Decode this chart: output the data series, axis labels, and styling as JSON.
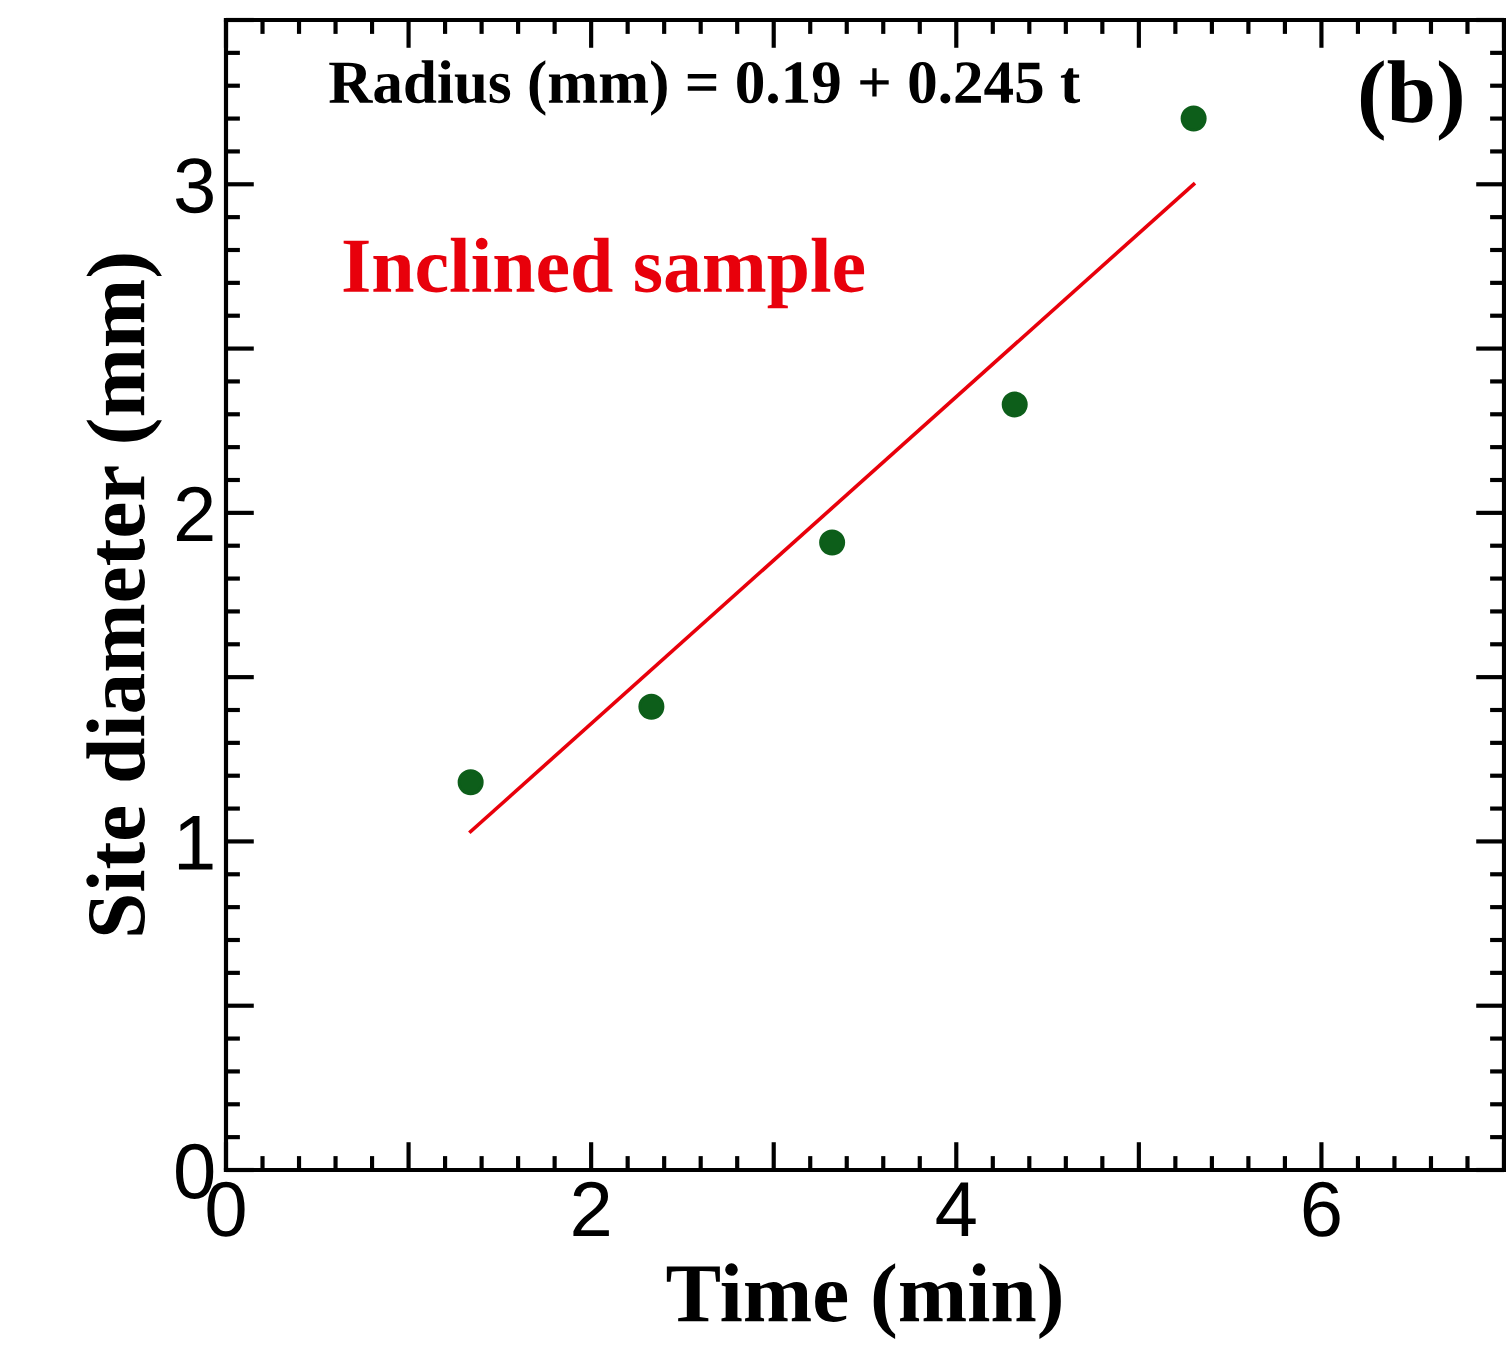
{
  "chart_data": {
    "type": "scatter",
    "xlabel": "Time (min)",
    "ylabel": "Site diameter (mm)",
    "annotations": [
      "Radius (mm) = 0.19 + 0.245 t",
      "Inclined sample",
      "(b)"
    ],
    "series": [
      {
        "marker": "circle",
        "color": "#0d5e1a",
        "x": [
          1.34,
          2.33,
          3.32,
          4.32,
          5.3
        ],
        "values": [
          1.18,
          1.41,
          1.91,
          2.33,
          3.2
        ]
      },
      {
        "type": "line",
        "color": "#e8000b",
        "x": [
          1.34,
          5.3
        ],
        "values": [
          1.03,
          3.0
        ]
      }
    ],
    "xlim": [
      0,
      7
    ],
    "ylim": [
      0,
      3.5
    ],
    "xticks": [
      0,
      {
        "value": 1,
        "label": null
      },
      2,
      {
        "value": 3,
        "label": null
      },
      4,
      {
        "value": 5,
        "label": null
      },
      6,
      {
        "value": 7,
        "label": null
      }
    ],
    "yticks": [
      0,
      {
        "value": 0.5,
        "label": null
      },
      1,
      {
        "value": 1.5,
        "label": null
      },
      2,
      {
        "value": 2.5,
        "label": null
      },
      3,
      {
        "value": 3.5,
        "label": null
      }
    ],
    "grid": false,
    "legend": false
  }
}
